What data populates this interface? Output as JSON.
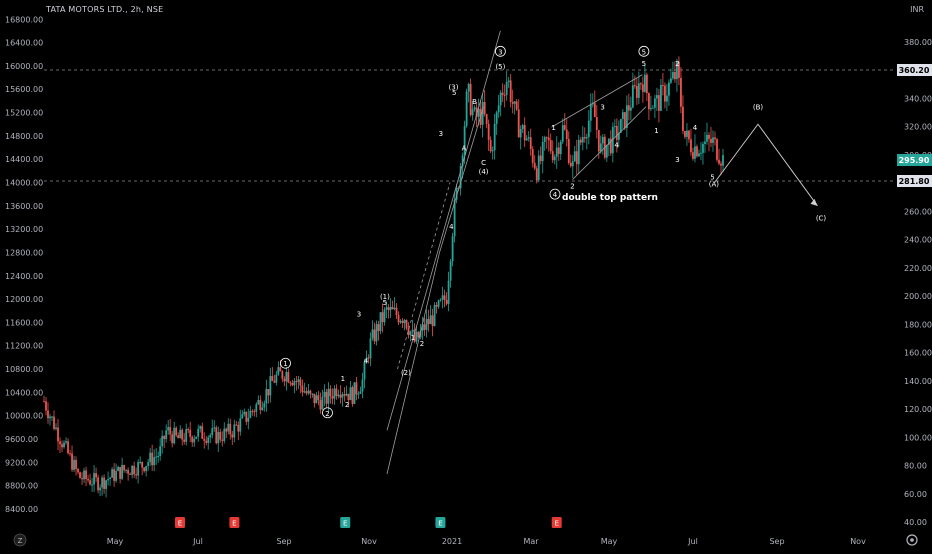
{
  "header": {
    "symbol_title": "TATA MOTORS LTD., 2h, NSE",
    "currency": "INR",
    "z_button": "Z",
    "settings_icon": "gear-icon"
  },
  "colors": {
    "background": "#000000",
    "bull": "#26a69a",
    "bear": "#ef5350",
    "label": "#ffffff",
    "axis_text": "#b2b5be",
    "line": "#cfcfcf",
    "last_price_bg": "#26a69a",
    "level_bg": "#e0e3eb",
    "earnings_bg": "#e53935",
    "event_bg": "#26a69a"
  },
  "chart_data": {
    "type": "candlestick",
    "left_axis": {
      "ticks": [
        "16800.00",
        "16400.00",
        "16000.00",
        "15600.00",
        "15200.00",
        "14800.00",
        "14400.00",
        "14000.00",
        "13600.00",
        "13200.00",
        "12800.00",
        "12400.00",
        "12000.00",
        "11600.00",
        "11200.00",
        "10800.00",
        "10400.00",
        "10000.00",
        "9600.00",
        "9200.00",
        "8800.00",
        "8400.00"
      ]
    },
    "right_axis": {
      "ticks": [
        "380.00",
        "360.00",
        "340.00",
        "320.00",
        "300.00",
        "280.00",
        "260.00",
        "240.00",
        "220.00",
        "200.00",
        "180.00",
        "160.00",
        "140.00",
        "120.00",
        "100.00",
        "80.00",
        "60.00",
        "40.00"
      ],
      "last_price": "295.90",
      "resistance": "360.20",
      "support": "281.80"
    },
    "x_axis": {
      "ticks": [
        "May",
        "Jul",
        "Sep",
        "Nov",
        "2021",
        "Mar",
        "May",
        "Jul",
        "Sep",
        "Nov"
      ]
    },
    "price_path_anchors": [
      [
        0.0,
        10250
      ],
      [
        0.02,
        9700
      ],
      [
        0.05,
        8950
      ],
      [
        0.08,
        8850
      ],
      [
        0.11,
        9050
      ],
      [
        0.14,
        9150
      ],
      [
        0.165,
        9350
      ],
      [
        0.175,
        9750
      ],
      [
        0.19,
        9600
      ],
      [
        0.22,
        9700
      ],
      [
        0.25,
        9650
      ],
      [
        0.27,
        9750
      ],
      [
        0.295,
        10050
      ],
      [
        0.315,
        10350
      ],
      [
        0.33,
        10650
      ],
      [
        0.345,
        10750
      ],
      [
        0.365,
        10550
      ],
      [
        0.38,
        10300
      ],
      [
        0.4,
        10250
      ],
      [
        0.42,
        10500
      ],
      [
        0.44,
        10350
      ],
      [
        0.455,
        10600
      ],
      [
        0.465,
        11200
      ],
      [
        0.48,
        11600
      ],
      [
        0.49,
        11800
      ],
      [
        0.5,
        11750
      ],
      [
        0.515,
        11700
      ],
      [
        0.53,
        11250
      ],
      [
        0.545,
        11550
      ],
      [
        0.56,
        11750
      ],
      [
        0.575,
        12050
      ],
      [
        0.585,
        13400
      ],
      [
        0.595,
        14300
      ],
      [
        0.605,
        15550
      ],
      [
        0.615,
        15100
      ],
      [
        0.628,
        15200
      ],
      [
        0.638,
        14500
      ],
      [
        0.652,
        15500
      ],
      [
        0.662,
        15800
      ],
      [
        0.675,
        15050
      ],
      [
        0.69,
        14750
      ],
      [
        0.705,
        14200
      ],
      [
        0.718,
        14700
      ],
      [
        0.73,
        14500
      ],
      [
        0.742,
        14950
      ],
      [
        0.755,
        14250
      ],
      [
        0.772,
        14900
      ],
      [
        0.785,
        15250
      ],
      [
        0.795,
        14550
      ],
      [
        0.81,
        14700
      ],
      [
        0.825,
        14950
      ],
      [
        0.84,
        15450
      ],
      [
        0.855,
        15800
      ],
      [
        0.865,
        15400
      ],
      [
        0.875,
        15350
      ],
      [
        0.89,
        15600
      ],
      [
        0.905,
        15900
      ],
      [
        0.915,
        14800
      ],
      [
        0.928,
        14600
      ],
      [
        0.94,
        14650
      ],
      [
        0.955,
        14700
      ],
      [
        0.97,
        14400
      ]
    ],
    "wave_labels": [
      {
        "text": "1",
        "circled": true,
        "x": 0.345,
        "y": 10900
      },
      {
        "text": "2",
        "circled": true,
        "x": 0.405,
        "y": 10050
      },
      {
        "text": "1",
        "x": 0.427,
        "y": 10650
      },
      {
        "text": "2",
        "x": 0.433,
        "y": 10200
      },
      {
        "text": "3",
        "x": 0.45,
        "y": 11750
      },
      {
        "text": "4",
        "x": 0.46,
        "y": 10950
      },
      {
        "text": "(1)",
        "x": 0.487,
        "y": 12050
      },
      {
        "text": "5",
        "x": 0.487,
        "y": 11950
      },
      {
        "text": "(2)",
        "x": 0.517,
        "y": 10750
      },
      {
        "text": "1",
        "x": 0.527,
        "y": 11350
      },
      {
        "text": "2",
        "x": 0.54,
        "y": 11250
      },
      {
        "text": "3",
        "x": 0.567,
        "y": 14850
      },
      {
        "text": "4",
        "x": 0.582,
        "y": 13250
      },
      {
        "text": "(3)",
        "x": 0.585,
        "y": 15650
      },
      {
        "text": "5",
        "x": 0.586,
        "y": 15550
      },
      {
        "text": "A",
        "x": 0.6,
        "y": 14600
      },
      {
        "text": "B",
        "x": 0.615,
        "y": 15400
      },
      {
        "text": "C",
        "x": 0.628,
        "y": 14350
      },
      {
        "text": "(4)",
        "x": 0.628,
        "y": 14200
      },
      {
        "text": "3",
        "circled": true,
        "x": 0.652,
        "y": 16250
      },
      {
        "text": "(5)",
        "x": 0.652,
        "y": 16000
      },
      {
        "text": "1",
        "x": 0.728,
        "y": 14950
      },
      {
        "text": "2",
        "x": 0.755,
        "y": 13950
      },
      {
        "text": "3",
        "x": 0.798,
        "y": 15300
      },
      {
        "text": "4",
        "x": 0.818,
        "y": 14650
      },
      {
        "text": "5",
        "circled": true,
        "x": 0.857,
        "y": 16250
      },
      {
        "text": "5",
        "x": 0.857,
        "y": 16050
      },
      {
        "text": "2",
        "x": 0.905,
        "y": 16050
      },
      {
        "text": "1",
        "x": 0.875,
        "y": 14900
      },
      {
        "text": "3",
        "x": 0.905,
        "y": 14400
      },
      {
        "text": "4",
        "x": 0.93,
        "y": 14950
      },
      {
        "text": "5",
        "x": 0.955,
        "y": 14100
      },
      {
        "text": "(A)",
        "x": 0.957,
        "y": 13980
      },
      {
        "text": "(B)",
        "x": 1.02,
        "y": 15300
      },
      {
        "text": "(C)",
        "x": 1.11,
        "y": 13400
      },
      {
        "text": "4",
        "circled": true,
        "x": 0.73,
        "y": 13800
      }
    ],
    "annotation": {
      "text": "double top pattern",
      "x": 0.74,
      "y": 13750
    },
    "projection": [
      [
        0.958,
        14000
      ],
      [
        1.02,
        15000
      ],
      [
        1.105,
        13600
      ]
    ],
    "channel_lines": [
      [
        [
          0.49,
          9750
        ],
        [
          0.652,
          16600
        ]
      ],
      [
        [
          0.49,
          9000
        ],
        [
          0.565,
          12800
        ]
      ],
      [
        [
          0.565,
          12800
        ],
        [
          0.628,
          15300
        ]
      ],
      [
        [
          0.725,
          14950
        ],
        [
          0.855,
          15850
        ]
      ],
      [
        [
          0.755,
          14050
        ],
        [
          0.86,
          15300
        ]
      ]
    ],
    "dashed_channel": [
      [
        0.505,
        10800
      ],
      [
        0.58,
        14000
      ]
    ],
    "events": [
      {
        "label": "E",
        "type": "earnings",
        "x": 0.2
      },
      {
        "label": "E",
        "type": "earnings",
        "x": 0.28
      },
      {
        "label": "E",
        "type": "dividend",
        "x": 0.443
      },
      {
        "label": "E",
        "type": "dividend",
        "x": 0.583
      },
      {
        "label": "E",
        "type": "earnings",
        "x": 0.754
      }
    ]
  }
}
